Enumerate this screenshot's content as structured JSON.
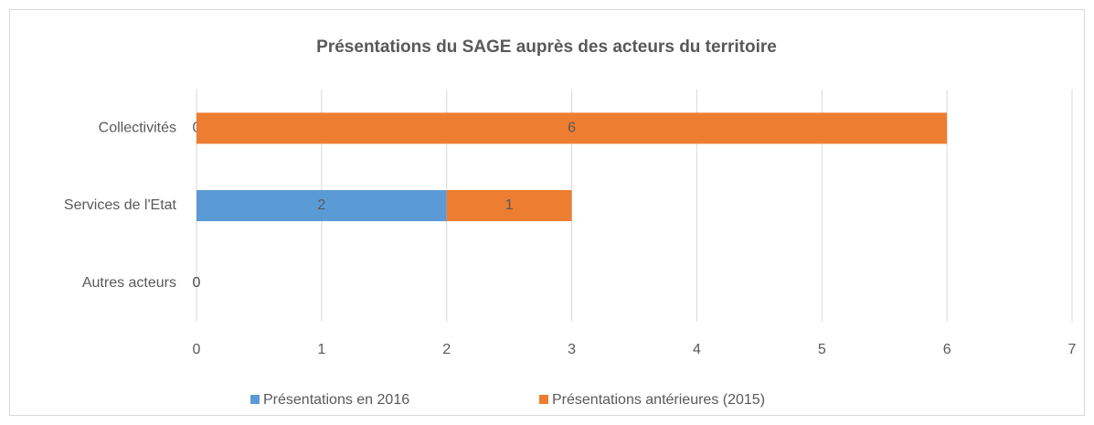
{
  "chart_data": {
    "type": "stacked-bar-horizontal",
    "title": "Présentations du SAGE auprès des acteurs du territoire",
    "categories": [
      "Collectivités",
      "Services de l'Etat",
      "Autres acteurs"
    ],
    "series": [
      {
        "name": "Présentations en 2016",
        "color": "#5b9bd5",
        "values": [
          0,
          2,
          0
        ]
      },
      {
        "name": "Présentations antérieures (2015)",
        "color": "#ed7d31",
        "values": [
          6,
          1,
          0
        ]
      }
    ],
    "xlim": [
      0,
      7
    ],
    "xticks": [
      0,
      1,
      2,
      3,
      4,
      5,
      6,
      7
    ],
    "grid": true,
    "legend": "bottom"
  }
}
